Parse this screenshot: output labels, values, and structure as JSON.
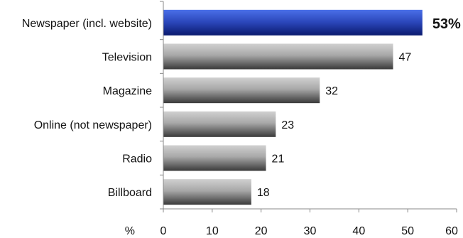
{
  "chart_data": {
    "type": "bar",
    "orientation": "horizontal",
    "categories": [
      "Newspaper (incl. website)",
      "Television",
      "Magazine",
      "Online (not newspaper)",
      "Radio",
      "Billboard"
    ],
    "values": [
      53,
      47,
      32,
      23,
      21,
      18
    ],
    "value_labels": [
      "53%",
      "47",
      "32",
      "23",
      "21",
      "18"
    ],
    "highlight_index": 0,
    "x_unit_label": "%",
    "xlim": [
      0,
      60
    ],
    "x_ticks": [
      0,
      10,
      20,
      30,
      40,
      50,
      60
    ],
    "grid": false,
    "colors": {
      "highlight_top": "#4a6fe8",
      "highlight_bottom": "#0a1a6e",
      "bar_top": "#d0d0d0",
      "bar_bottom": "#3a3a3a",
      "axis": "#888888"
    }
  }
}
